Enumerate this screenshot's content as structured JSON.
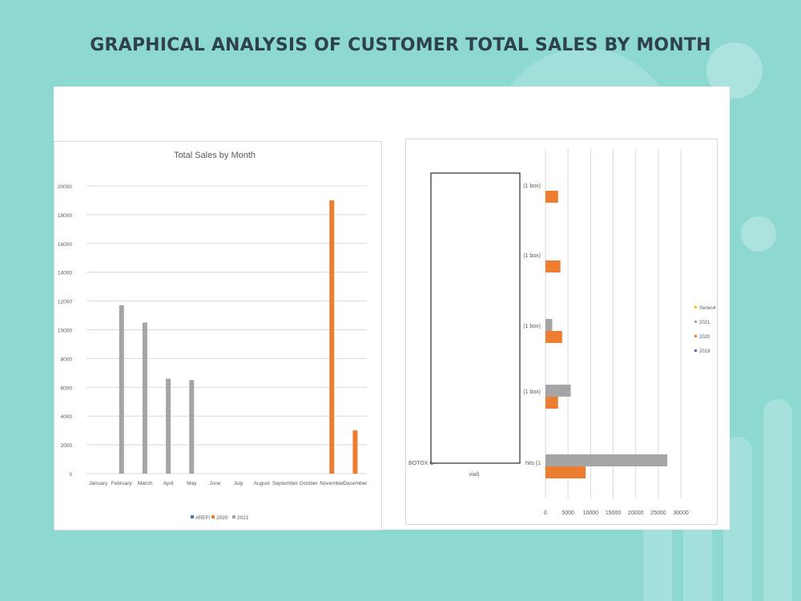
{
  "page": {
    "title": "GRAPHICAL ANALYSIS OF CUSTOMER TOTAL SALES BY MONTH"
  },
  "colors": {
    "background": "#8dd9d2",
    "title": "#2e4150",
    "series_2019": "#4472c4",
    "series_2020": "#ed7d31",
    "series_2021": "#a5a5a5",
    "series_series4": "#ffc000"
  },
  "chart_data": [
    {
      "type": "bar",
      "title": "Total Sales by Month",
      "categories": [
        "January",
        "February",
        "March",
        "April",
        "May",
        "June",
        "July",
        "August",
        "September",
        "October",
        "November",
        "December"
      ],
      "series": [
        {
          "name": "#REF!",
          "color": "#4472c4",
          "values": [
            0,
            0,
            0,
            0,
            0,
            0,
            0,
            0,
            0,
            0,
            0,
            0
          ]
        },
        {
          "name": "2020",
          "color": "#ed7d31",
          "values": [
            0,
            0,
            0,
            0,
            0,
            0,
            0,
            0,
            0,
            0,
            19000,
            3000
          ]
        },
        {
          "name": "2021",
          "color": "#a5a5a5",
          "values": [
            0,
            11700,
            10500,
            6600,
            6500,
            0,
            0,
            0,
            0,
            0,
            0,
            0
          ]
        }
      ],
      "yticks": [
        "0",
        "2000",
        "4000",
        "6000",
        "8000",
        "10000",
        "12000",
        "14000",
        "16000",
        "18000",
        "20000"
      ],
      "ylim": [
        0,
        20000
      ],
      "grid": true,
      "legend": "bottom"
    },
    {
      "type": "bar",
      "orientation": "horizontal",
      "categories": [
        "(1 box)",
        "(1 box)",
        "(1 box)",
        "(1 box)",
        "BOTOX C... hits (1 vial)"
      ],
      "category_label_lines": [
        [
          "(1 box)"
        ],
        [
          "(1 box)"
        ],
        [
          "(1 box)"
        ],
        [
          "(1 box)"
        ],
        [
          "BOTOX C",
          "hits (1",
          "vial)"
        ]
      ],
      "series": [
        {
          "name": "2020",
          "color": "#ed7d31",
          "values": [
            2800,
            3300,
            3700,
            2800,
            8900
          ]
        },
        {
          "name": "2021",
          "color": "#a5a5a5",
          "values": [
            0,
            0,
            1500,
            5600,
            27000
          ]
        }
      ],
      "xticks": [
        "0",
        "5000",
        "10000",
        "15000",
        "20000",
        "25000",
        "30000"
      ],
      "xlim": [
        0,
        30000
      ],
      "grid": true,
      "legend_entries": [
        {
          "name": "Series4",
          "color": "#ffc000"
        },
        {
          "name": "2021",
          "color": "#a5a5a5"
        },
        {
          "name": "2020",
          "color": "#ed7d31"
        },
        {
          "name": "2019",
          "color": "#4472c4"
        }
      ],
      "legend": "right"
    }
  ]
}
